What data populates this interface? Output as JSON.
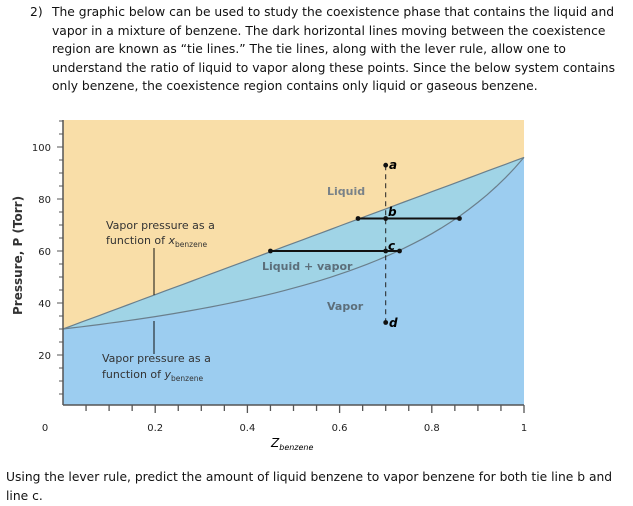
{
  "question": {
    "number": "2)",
    "text": "The graphic below can be used to study the coexistence phase that contains the liquid and vapor in a mixture of benzene. The dark horizontal lines moving between the coexistence region are known as “tie lines.” The tie lines, along with the lever rule, allow one to understand the ratio of liquid to vapor along these points. Since the below system contains only benzene, the coexistence region contains only liquid or gaseous benzene."
  },
  "prompt": "Using the lever rule, predict the amount of liquid benzene to vapor benzene for both tie line b and line c.",
  "diagram": {
    "y_axis_label": "Pressure, P (Torr)",
    "x_axis_label_main": "Z",
    "x_axis_label_sub": "benzene",
    "x_ticks": [
      "0",
      "0.2",
      "0.4",
      "0.6",
      "0.8",
      "1"
    ],
    "y_ticks": [
      "20",
      "40",
      "60",
      "80",
      "100"
    ],
    "regions": {
      "liquid": "Liquid",
      "coexist": "Liquid + vapor",
      "vapor": "Vapor"
    },
    "x_curve_label": {
      "line1": "Vapor pressure as a",
      "line2": "function of ",
      "var": "x",
      "sub": "benzene"
    },
    "y_curve_label": {
      "line1": "Vapor pressure as a",
      "line2": "function of ",
      "var": "y",
      "sub": "benzene"
    },
    "points": {
      "a": "a",
      "b": "b",
      "c": "c",
      "d": "d"
    },
    "colors": {
      "liquid": "#f9dea8",
      "coexist": "#a0d4e6",
      "vapor": "#9ccdf0",
      "curve": "#6a7f8c",
      "label": "#5c6e7a"
    }
  }
}
